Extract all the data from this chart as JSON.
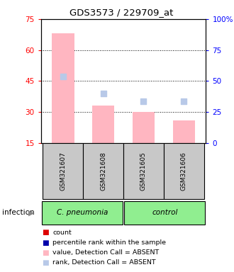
{
  "title": "GDS3573 / 229709_at",
  "samples": [
    "GSM321607",
    "GSM321608",
    "GSM321605",
    "GSM321606"
  ],
  "bar_values": [
    68,
    33,
    30,
    26
  ],
  "rank_values": [
    47,
    39,
    35,
    35
  ],
  "ylim_left": [
    15,
    75
  ],
  "ylim_right": [
    0,
    100
  ],
  "yticks_left": [
    15,
    30,
    45,
    60,
    75
  ],
  "yticks_right": [
    0,
    25,
    50,
    75,
    100
  ],
  "ytick_labels_right": [
    "0",
    "25",
    "50",
    "75",
    "100%"
  ],
  "bar_color": "#FFB6C1",
  "rank_color": "#B8C9E8",
  "bar_bottom": 15,
  "legend_items": [
    {
      "color": "#DD0000",
      "label": "count",
      "marker": "s"
    },
    {
      "color": "#0000AA",
      "label": "percentile rank within the sample",
      "marker": "s"
    },
    {
      "color": "#FFB6C1",
      "label": "value, Detection Call = ABSENT",
      "marker": "s"
    },
    {
      "color": "#B8C9E8",
      "label": "rank, Detection Call = ABSENT",
      "marker": "s"
    }
  ],
  "group_split": 2,
  "infection_label": "infection",
  "group1_label": "C. pneumonia",
  "group2_label": "control",
  "group_color": "#90EE90",
  "sample_box_color": "#C8C8C8",
  "chart_bg": "#FFFFFF"
}
